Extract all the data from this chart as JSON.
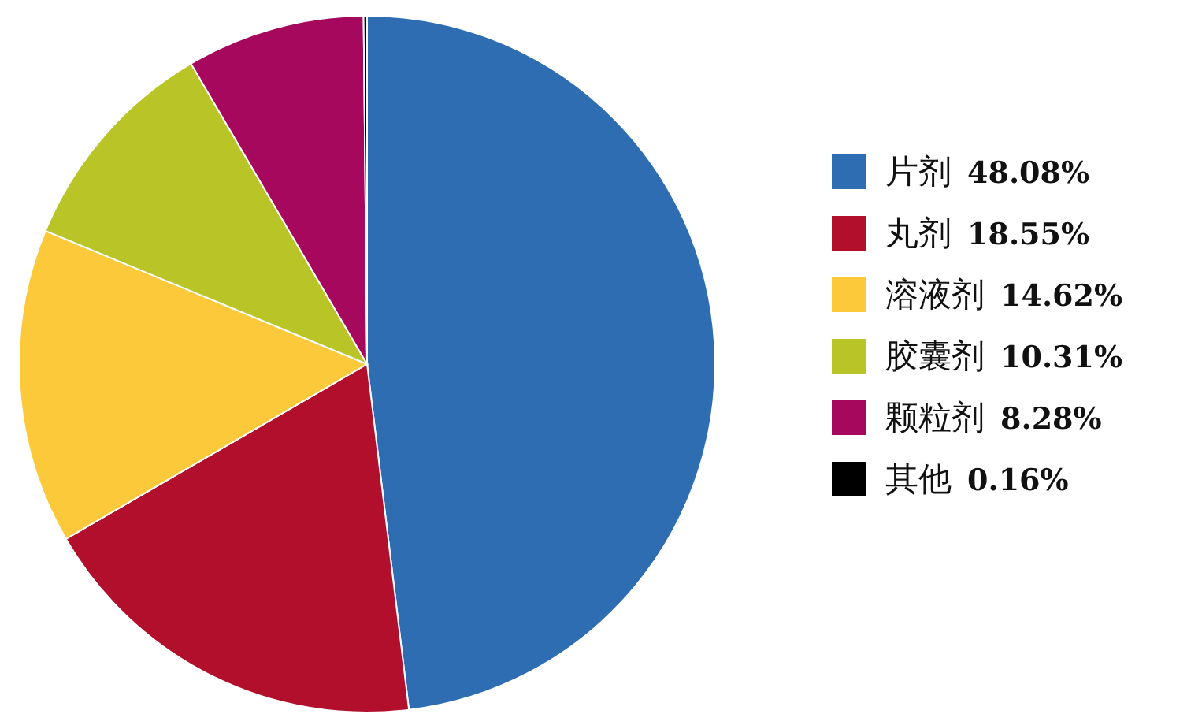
{
  "chart_data": {
    "type": "pie",
    "categories": [
      "片剂",
      "丸剂",
      "溶液剂",
      "胶囊剂",
      "颗粒剂",
      "其他"
    ],
    "values": [
      48.08,
      18.55,
      14.62,
      10.31,
      8.28,
      0.16
    ],
    "value_labels": [
      "48.08%",
      "18.55%",
      "14.62%",
      "10.31%",
      "8.28%",
      "0.16%"
    ],
    "colors": [
      "#2f6db3",
      "#b20f2c",
      "#fbc93a",
      "#b9c526",
      "#a5085c",
      "#000000"
    ],
    "legend": "right"
  }
}
